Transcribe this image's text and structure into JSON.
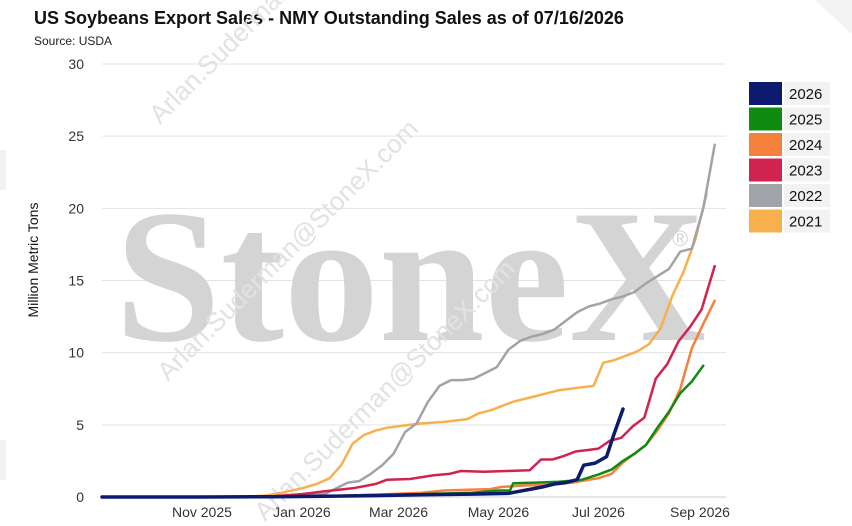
{
  "chart_data": {
    "type": "line",
    "title": "US Soybeans Export Sales - NMY Outstanding Sales as of 07/16/2026",
    "subtitle": "Source: USDA",
    "xlabel": "",
    "ylabel": "Million Metric Tons",
    "ylim": [
      0,
      30
    ],
    "yticks": [
      0,
      5,
      10,
      15,
      20,
      25,
      30
    ],
    "xticks": [
      "Nov 2025",
      "Jan 2026",
      "Mar 2026",
      "May 2026",
      "Jul 2026",
      "Sep 2026"
    ],
    "xtick_dates": [
      "2025-11-01",
      "2026-01-01",
      "2026-03-01",
      "2026-05-01",
      "2026-07-01",
      "2026-09-01"
    ],
    "x_range": [
      "2025-09-01",
      "2026-09-15"
    ],
    "grid": "horizontal",
    "legend_position": "right",
    "watermark": {
      "logo": "StoneX",
      "text": [
        "Arlan.Suderman@StoneX.com",
        "Arlan.Suderman@StoneX.com",
        "Arlan.Suderman@StoneX.com"
      ]
    },
    "series": [
      {
        "name": "2026",
        "color": "#0d1b6e",
        "width": 3.5,
        "points": [
          [
            "2025-09-01",
            0
          ],
          [
            "2025-11-01",
            0
          ],
          [
            "2025-12-15",
            0.02
          ],
          [
            "2026-01-15",
            0.05
          ],
          [
            "2026-02-15",
            0.1
          ],
          [
            "2026-03-15",
            0.15
          ],
          [
            "2026-04-15",
            0.2
          ],
          [
            "2026-05-07",
            0.25
          ],
          [
            "2026-05-14",
            0.4
          ],
          [
            "2026-05-21",
            0.55
          ],
          [
            "2026-05-28",
            0.7
          ],
          [
            "2026-06-04",
            0.9
          ],
          [
            "2026-06-11",
            1.0
          ],
          [
            "2026-06-18",
            1.2
          ],
          [
            "2026-06-22",
            2.2
          ],
          [
            "2026-06-29",
            2.35
          ],
          [
            "2026-07-06",
            2.8
          ],
          [
            "2026-07-10",
            4.2
          ],
          [
            "2026-07-16",
            6.1
          ]
        ]
      },
      {
        "name": "2025",
        "color": "#118a11",
        "width": 2.5,
        "points": [
          [
            "2025-09-01",
            0
          ],
          [
            "2025-12-01",
            0
          ],
          [
            "2026-01-15",
            0.05
          ],
          [
            "2026-02-15",
            0.15
          ],
          [
            "2026-03-15",
            0.2
          ],
          [
            "2026-04-15",
            0.3
          ],
          [
            "2026-05-01",
            0.45
          ],
          [
            "2026-05-08",
            0.45
          ],
          [
            "2026-05-10",
            0.95
          ],
          [
            "2026-05-24",
            1.0
          ],
          [
            "2026-06-07",
            1.05
          ],
          [
            "2026-06-21",
            1.2
          ],
          [
            "2026-07-01",
            1.55
          ],
          [
            "2026-07-09",
            1.9
          ],
          [
            "2026-07-16",
            2.5
          ],
          [
            "2026-07-23",
            3.0
          ],
          [
            "2026-07-30",
            3.6
          ],
          [
            "2026-08-06",
            4.8
          ],
          [
            "2026-08-13",
            5.9
          ],
          [
            "2026-08-20",
            7.2
          ],
          [
            "2026-08-27",
            8.0
          ],
          [
            "2026-09-03",
            9.1
          ]
        ]
      },
      {
        "name": "2024",
        "color": "#f5813d",
        "width": 2.5,
        "points": [
          [
            "2025-09-01",
            0
          ],
          [
            "2025-12-01",
            0
          ],
          [
            "2026-01-15",
            0.05
          ],
          [
            "2026-02-15",
            0.15
          ],
          [
            "2026-03-15",
            0.3
          ],
          [
            "2026-03-29",
            0.45
          ],
          [
            "2026-04-12",
            0.5
          ],
          [
            "2026-04-26",
            0.55
          ],
          [
            "2026-05-03",
            0.7
          ],
          [
            "2026-05-17",
            0.8
          ],
          [
            "2026-06-01",
            0.85
          ],
          [
            "2026-06-15",
            1.0
          ],
          [
            "2026-07-01",
            1.3
          ],
          [
            "2026-07-09",
            1.6
          ],
          [
            "2026-07-16",
            2.4
          ],
          [
            "2026-07-23",
            3.0
          ],
          [
            "2026-07-30",
            3.6
          ],
          [
            "2026-08-06",
            4.6
          ],
          [
            "2026-08-13",
            5.8
          ],
          [
            "2026-08-20",
            7.5
          ],
          [
            "2026-08-27",
            10.3
          ],
          [
            "2026-09-03",
            12.0
          ],
          [
            "2026-09-10",
            13.6
          ]
        ]
      },
      {
        "name": "2023",
        "color": "#d02350",
        "width": 2.5,
        "points": [
          [
            "2025-09-01",
            0
          ],
          [
            "2025-12-01",
            0
          ],
          [
            "2025-12-15",
            0.05
          ],
          [
            "2026-01-01",
            0.2
          ],
          [
            "2026-01-15",
            0.4
          ],
          [
            "2026-02-01",
            0.6
          ],
          [
            "2026-02-15",
            0.9
          ],
          [
            "2026-02-22",
            1.2
          ],
          [
            "2026-03-08",
            1.25
          ],
          [
            "2026-03-22",
            1.5
          ],
          [
            "2026-04-01",
            1.6
          ],
          [
            "2026-04-08",
            1.8
          ],
          [
            "2026-04-22",
            1.75
          ],
          [
            "2026-05-06",
            1.8
          ],
          [
            "2026-05-20",
            1.85
          ],
          [
            "2026-05-27",
            2.6
          ],
          [
            "2026-06-03",
            2.6
          ],
          [
            "2026-06-10",
            2.85
          ],
          [
            "2026-06-17",
            3.15
          ],
          [
            "2026-06-24",
            3.25
          ],
          [
            "2026-07-01",
            3.35
          ],
          [
            "2026-07-08",
            3.9
          ],
          [
            "2026-07-15",
            4.1
          ],
          [
            "2026-07-22",
            4.9
          ],
          [
            "2026-07-29",
            5.5
          ],
          [
            "2026-08-05",
            8.2
          ],
          [
            "2026-08-12",
            9.2
          ],
          [
            "2026-08-19",
            10.8
          ],
          [
            "2026-08-26",
            11.8
          ],
          [
            "2026-09-02",
            13.0
          ],
          [
            "2026-09-10",
            16.0
          ]
        ]
      },
      {
        "name": "2022",
        "color": "#a0a3a8",
        "width": 2.5,
        "points": [
          [
            "2025-09-01",
            0
          ],
          [
            "2025-12-01",
            0
          ],
          [
            "2025-12-15",
            0.05
          ],
          [
            "2026-01-15",
            0.2
          ],
          [
            "2026-01-22",
            0.6
          ],
          [
            "2026-01-29",
            1.0
          ],
          [
            "2026-02-05",
            1.1
          ],
          [
            "2026-02-12",
            1.6
          ],
          [
            "2026-02-19",
            2.2
          ],
          [
            "2026-02-26",
            3.0
          ],
          [
            "2026-03-05",
            4.5
          ],
          [
            "2026-03-12",
            5.1
          ],
          [
            "2026-03-19",
            6.6
          ],
          [
            "2026-03-26",
            7.7
          ],
          [
            "2026-04-02",
            8.1
          ],
          [
            "2026-04-09",
            8.1
          ],
          [
            "2026-04-16",
            8.2
          ],
          [
            "2026-04-23",
            8.6
          ],
          [
            "2026-04-30",
            9.0
          ],
          [
            "2026-05-07",
            10.2
          ],
          [
            "2026-05-14",
            10.8
          ],
          [
            "2026-05-21",
            11.1
          ],
          [
            "2026-05-28",
            11.3
          ],
          [
            "2026-06-04",
            11.6
          ],
          [
            "2026-06-11",
            12.2
          ],
          [
            "2026-06-18",
            12.8
          ],
          [
            "2026-06-25",
            13.2
          ],
          [
            "2026-07-02",
            13.4
          ],
          [
            "2026-07-09",
            13.7
          ],
          [
            "2026-07-16",
            13.9
          ],
          [
            "2026-07-23",
            14.2
          ],
          [
            "2026-07-30",
            14.8
          ],
          [
            "2026-08-06",
            15.3
          ],
          [
            "2026-08-13",
            15.8
          ],
          [
            "2026-08-20",
            17.0
          ],
          [
            "2026-08-27",
            17.2
          ],
          [
            "2026-09-03",
            20.0
          ],
          [
            "2026-09-10",
            24.4
          ]
        ]
      },
      {
        "name": "2021",
        "color": "#f7b04d",
        "width": 2.5,
        "points": [
          [
            "2025-09-01",
            0
          ],
          [
            "2025-11-25",
            0
          ],
          [
            "2025-12-10",
            0.1
          ],
          [
            "2025-12-20",
            0.3
          ],
          [
            "2026-01-01",
            0.6
          ],
          [
            "2026-01-10",
            0.9
          ],
          [
            "2026-01-18",
            1.3
          ],
          [
            "2026-01-25",
            2.2
          ],
          [
            "2026-02-01",
            3.7
          ],
          [
            "2026-02-08",
            4.3
          ],
          [
            "2026-02-15",
            4.6
          ],
          [
            "2026-02-22",
            4.8
          ],
          [
            "2026-03-01",
            4.9
          ],
          [
            "2026-03-15",
            5.1
          ],
          [
            "2026-03-29",
            5.2
          ],
          [
            "2026-04-12",
            5.4
          ],
          [
            "2026-04-19",
            5.8
          ],
          [
            "2026-04-26",
            6.0
          ],
          [
            "2026-05-03",
            6.3
          ],
          [
            "2026-05-10",
            6.6
          ],
          [
            "2026-05-17",
            6.8
          ],
          [
            "2026-05-24",
            7.0
          ],
          [
            "2026-05-31",
            7.2
          ],
          [
            "2026-06-07",
            7.4
          ],
          [
            "2026-06-14",
            7.5
          ],
          [
            "2026-06-21",
            7.6
          ],
          [
            "2026-06-28",
            7.7
          ],
          [
            "2026-07-04",
            9.3
          ],
          [
            "2026-07-11",
            9.5
          ],
          [
            "2026-07-18",
            9.8
          ],
          [
            "2026-07-25",
            10.1
          ],
          [
            "2026-08-01",
            10.6
          ],
          [
            "2026-08-08",
            11.7
          ],
          [
            "2026-08-15",
            13.9
          ],
          [
            "2026-08-22",
            15.6
          ],
          [
            "2026-08-29",
            17.8
          ],
          [
            "2026-09-05",
            21.0
          ]
        ]
      }
    ]
  }
}
